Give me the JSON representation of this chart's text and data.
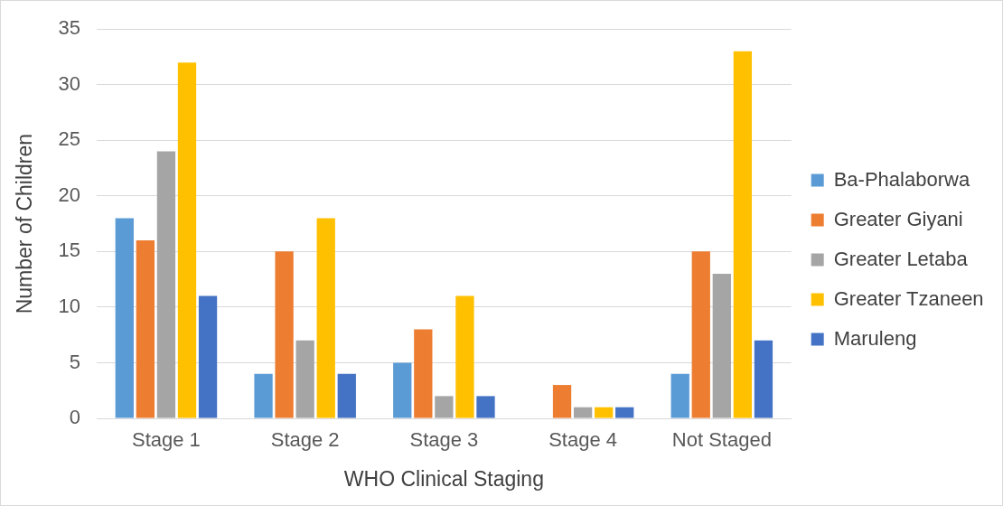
{
  "chart_data": {
    "type": "bar",
    "xlabel": "WHO Clinical Staging",
    "ylabel": "Number of Children",
    "categories": [
      "Stage 1",
      "Stage 2",
      "Stage 3",
      "Stage 4",
      "Not Staged"
    ],
    "series": [
      {
        "name": "Ba-Phalaborwa",
        "color": "#5b9bd5",
        "values": [
          18,
          4,
          5,
          0,
          4
        ]
      },
      {
        "name": "Greater Giyani",
        "color": "#ed7d31",
        "values": [
          16,
          15,
          8,
          3,
          15
        ]
      },
      {
        "name": "Greater Letaba",
        "color": "#a5a5a5",
        "values": [
          24,
          7,
          2,
          1,
          13
        ]
      },
      {
        "name": "Greater Tzaneen",
        "color": "#ffc000",
        "values": [
          32,
          18,
          11,
          1,
          33
        ]
      },
      {
        "name": "Maruleng",
        "color": "#4472c4",
        "values": [
          11,
          4,
          2,
          1,
          7
        ]
      }
    ],
    "ylim": [
      0,
      35
    ],
    "yticks": [
      0,
      5,
      10,
      15,
      20,
      25,
      30,
      35
    ],
    "grid": "y",
    "legend": "right"
  }
}
